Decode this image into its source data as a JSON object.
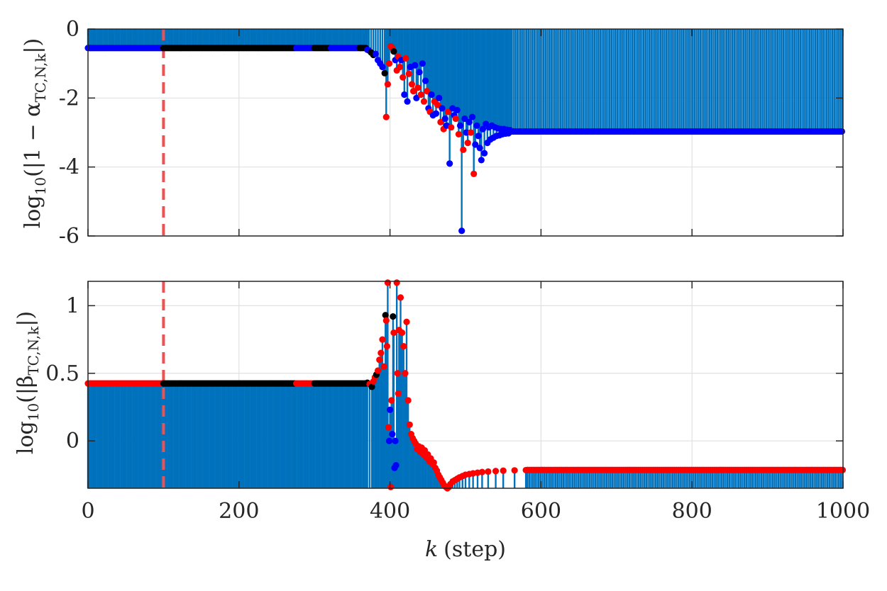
{
  "chart_data": [
    {
      "type": "stem",
      "panel": "top",
      "ylabel": {
        "prefix": "log",
        "base": "10",
        "body": "(|1 − α",
        "sub": "TC,N,k",
        "suffix": "|)"
      },
      "xlim": [
        0,
        1000
      ],
      "ylim": [
        -6,
        0
      ],
      "yticks": [
        0,
        -2,
        -4,
        -6
      ],
      "ytick_labels": [
        "0",
        "-2",
        "-4",
        "-6"
      ],
      "grid": true,
      "marker_vline_x": 100,
      "baseline_value": -0.55,
      "steady_value": -2.97,
      "transient": [
        [
          370,
          -0.6,
          "blue"
        ],
        [
          372,
          -0.62,
          "blue"
        ],
        [
          375,
          -0.68,
          "black"
        ],
        [
          378,
          -0.75,
          "black"
        ],
        [
          381,
          -0.72,
          "blue"
        ],
        [
          384,
          -0.9,
          "blue"
        ],
        [
          387,
          -1.0,
          "blue"
        ],
        [
          390,
          -1.1,
          "blue"
        ],
        [
          393,
          -1.28,
          "black"
        ],
        [
          395,
          -2.55,
          "red"
        ],
        [
          397,
          -1.6,
          "red"
        ],
        [
          399,
          -1.0,
          "red"
        ],
        [
          401,
          -0.5,
          "red"
        ],
        [
          403,
          -0.55,
          "red"
        ],
        [
          405,
          -0.65,
          "black"
        ],
        [
          407,
          -0.9,
          "blue"
        ],
        [
          409,
          -1.2,
          "red"
        ],
        [
          411,
          -0.8,
          "red"
        ],
        [
          413,
          -1.1,
          "red"
        ],
        [
          415,
          -0.9,
          "blue"
        ],
        [
          417,
          -1.4,
          "red"
        ],
        [
          419,
          -1.9,
          "blue"
        ],
        [
          421,
          -0.85,
          "red"
        ],
        [
          423,
          -2.1,
          "blue"
        ],
        [
          425,
          -1.3,
          "red"
        ],
        [
          427,
          -1.1,
          "blue"
        ],
        [
          429,
          -1.6,
          "red"
        ],
        [
          431,
          -1.8,
          "red"
        ],
        [
          433,
          -1.05,
          "blue"
        ],
        [
          435,
          -2.0,
          "blue"
        ],
        [
          437,
          -1.7,
          "red"
        ],
        [
          439,
          -1.25,
          "blue"
        ],
        [
          441,
          -1.9,
          "red"
        ],
        [
          443,
          -1.0,
          "blue"
        ],
        [
          445,
          -2.1,
          "red"
        ],
        [
          447,
          -1.5,
          "blue"
        ],
        [
          449,
          -1.8,
          "red"
        ],
        [
          451,
          -2.3,
          "blue"
        ],
        [
          453,
          -2.4,
          "red"
        ],
        [
          455,
          -1.9,
          "blue"
        ],
        [
          457,
          -2.5,
          "blue"
        ],
        [
          459,
          -2.1,
          "red"
        ],
        [
          461,
          -2.45,
          "blue"
        ],
        [
          463,
          -2.2,
          "red"
        ],
        [
          465,
          -2.0,
          "blue"
        ],
        [
          467,
          -2.7,
          "red"
        ],
        [
          469,
          -2.3,
          "blue"
        ],
        [
          471,
          -2.9,
          "red"
        ],
        [
          473,
          -2.6,
          "blue"
        ],
        [
          475,
          -2.8,
          "blue"
        ],
        [
          477,
          -2.4,
          "red"
        ],
        [
          479,
          -3.9,
          "blue"
        ],
        [
          481,
          -2.85,
          "red"
        ],
        [
          483,
          -2.3,
          "blue"
        ],
        [
          485,
          -2.5,
          "blue"
        ],
        [
          487,
          -2.6,
          "red"
        ],
        [
          489,
          -2.35,
          "blue"
        ],
        [
          491,
          -3.05,
          "red"
        ],
        [
          493,
          -2.8,
          "blue"
        ],
        [
          495,
          -5.85,
          "blue"
        ],
        [
          497,
          -3.5,
          "red"
        ],
        [
          499,
          -2.6,
          "blue"
        ],
        [
          501,
          -3.0,
          "blue"
        ],
        [
          503,
          -3.3,
          "red"
        ],
        [
          505,
          -2.7,
          "blue"
        ],
        [
          507,
          -3.0,
          "red"
        ],
        [
          509,
          -2.55,
          "blue"
        ],
        [
          511,
          -4.2,
          "red"
        ],
        [
          513,
          -3.35,
          "blue"
        ],
        [
          515,
          -2.8,
          "blue"
        ],
        [
          517,
          -3.1,
          "blue"
        ],
        [
          519,
          -3.45,
          "blue"
        ],
        [
          521,
          -3.8,
          "blue"
        ],
        [
          523,
          -2.9,
          "blue"
        ],
        [
          525,
          -3.6,
          "blue"
        ],
        [
          527,
          -2.75,
          "blue"
        ],
        [
          529,
          -3.3,
          "blue"
        ],
        [
          531,
          -2.85,
          "blue"
        ],
        [
          533,
          -3.2,
          "blue"
        ],
        [
          535,
          -2.8,
          "blue"
        ],
        [
          537,
          -3.15,
          "blue"
        ],
        [
          539,
          -2.85,
          "blue"
        ],
        [
          541,
          -3.1,
          "blue"
        ],
        [
          543,
          -2.88,
          "blue"
        ],
        [
          545,
          -3.08,
          "blue"
        ],
        [
          547,
          -2.9,
          "blue"
        ],
        [
          549,
          -3.05,
          "blue"
        ],
        [
          551,
          -2.9,
          "blue"
        ],
        [
          553,
          -3.03,
          "blue"
        ],
        [
          555,
          -2.92,
          "blue"
        ],
        [
          557,
          -3.02,
          "blue"
        ],
        [
          559,
          -2.93,
          "blue"
        ]
      ]
    },
    {
      "type": "stem",
      "panel": "bottom",
      "ylabel": {
        "prefix": "log",
        "base": "10",
        "body": "(|β",
        "sub": "TC,N,k",
        "suffix": "|)"
      },
      "xlabel": {
        "var": "k",
        "text": "(step)"
      },
      "xlim": [
        0,
        1000
      ],
      "xticks": [
        0,
        200,
        400,
        600,
        800,
        1000
      ],
      "xtick_labels": [
        "0",
        "200",
        "400",
        "600",
        "800",
        "1000"
      ],
      "ylim": [
        -0.35,
        1.18
      ],
      "yticks": [
        1,
        0.5,
        0
      ],
      "ytick_labels": [
        "1",
        "0.5",
        "0"
      ],
      "grid": true,
      "marker_vline_x": 100,
      "stem_base_value": -0.35,
      "baseline_value": 0.425,
      "steady_value": -0.215,
      "transient": [
        [
          370,
          0.43,
          "black"
        ],
        [
          373,
          0.42,
          "red"
        ],
        [
          376,
          0.4,
          "black"
        ],
        [
          378,
          0.44,
          "red"
        ],
        [
          380,
          0.47,
          "red"
        ],
        [
          382,
          0.49,
          "black"
        ],
        [
          384,
          0.52,
          "red"
        ],
        [
          386,
          0.6,
          "red"
        ],
        [
          388,
          0.65,
          "red"
        ],
        [
          390,
          0.75,
          "red"
        ],
        [
          392,
          0.55,
          "red"
        ],
        [
          394,
          0.93,
          "black"
        ],
        [
          395,
          0.89,
          "red"
        ],
        [
          396,
          0.7,
          "red"
        ],
        [
          397,
          1.17,
          "red"
        ],
        [
          398,
          0.1,
          "red"
        ],
        [
          399,
          0.0,
          "blue"
        ],
        [
          400,
          0.23,
          "blue"
        ],
        [
          401,
          -0.34,
          "red"
        ],
        [
          402,
          0.3,
          "red"
        ],
        [
          403,
          0.05,
          "blue"
        ],
        [
          404,
          0.92,
          "black"
        ],
        [
          405,
          0.8,
          "red"
        ],
        [
          406,
          -0.2,
          "blue"
        ],
        [
          407,
          0.0,
          "blue"
        ],
        [
          408,
          -0.18,
          "blue"
        ],
        [
          409,
          1.17,
          "red"
        ],
        [
          410,
          0.5,
          "red"
        ],
        [
          411,
          0.35,
          "red"
        ],
        [
          412,
          0.82,
          "red"
        ],
        [
          414,
          1.06,
          "red"
        ],
        [
          416,
          0.8,
          "red"
        ],
        [
          418,
          0.7,
          "red"
        ],
        [
          420,
          0.5,
          "red"
        ],
        [
          422,
          0.88,
          "red"
        ],
        [
          424,
          0.3,
          "red"
        ],
        [
          426,
          0.12,
          "red"
        ],
        [
          428,
          0.05,
          "red"
        ],
        [
          430,
          0.02,
          "red"
        ],
        [
          432,
          0.0,
          "red"
        ],
        [
          434,
          -0.02,
          "red"
        ],
        [
          436,
          -0.06,
          "red"
        ],
        [
          438,
          -0.04,
          "red"
        ],
        [
          440,
          -0.08,
          "red"
        ],
        [
          442,
          -0.05,
          "red"
        ],
        [
          444,
          -0.1,
          "red"
        ],
        [
          446,
          -0.07,
          "red"
        ],
        [
          448,
          -0.12,
          "red"
        ],
        [
          450,
          -0.1,
          "red"
        ],
        [
          452,
          -0.15,
          "red"
        ],
        [
          454,
          -0.13,
          "red"
        ],
        [
          456,
          -0.17,
          "red"
        ],
        [
          458,
          -0.16,
          "red"
        ],
        [
          460,
          -0.2,
          "red"
        ],
        [
          462,
          -0.22,
          "red"
        ],
        [
          464,
          -0.25,
          "red"
        ],
        [
          466,
          -0.27,
          "red"
        ],
        [
          468,
          -0.29,
          "red"
        ],
        [
          470,
          -0.31,
          "red"
        ],
        [
          472,
          -0.33,
          "red"
        ],
        [
          474,
          -0.34,
          "red"
        ],
        [
          476,
          -0.35,
          "red"
        ],
        [
          478,
          -0.34,
          "red"
        ],
        [
          480,
          -0.32,
          "red"
        ],
        [
          483,
          -0.3,
          "red"
        ],
        [
          486,
          -0.29,
          "red"
        ],
        [
          489,
          -0.28,
          "red"
        ],
        [
          492,
          -0.27,
          "red"
        ],
        [
          496,
          -0.26,
          "red"
        ],
        [
          500,
          -0.25,
          "red"
        ],
        [
          505,
          -0.245,
          "red"
        ],
        [
          510,
          -0.24,
          "red"
        ],
        [
          516,
          -0.235,
          "red"
        ],
        [
          522,
          -0.23,
          "red"
        ],
        [
          530,
          -0.227,
          "red"
        ],
        [
          540,
          -0.223,
          "red"
        ],
        [
          550,
          -0.22,
          "red"
        ],
        [
          565,
          -0.218,
          "red"
        ],
        [
          580,
          -0.216,
          "red"
        ]
      ]
    }
  ],
  "colors": {
    "blue": "#0000ff",
    "black": "#000000",
    "red": "#ff0000",
    "stem": "#0072bd",
    "vline": "#f05050",
    "grid": "#e1e1e1",
    "axis": "#262626"
  }
}
